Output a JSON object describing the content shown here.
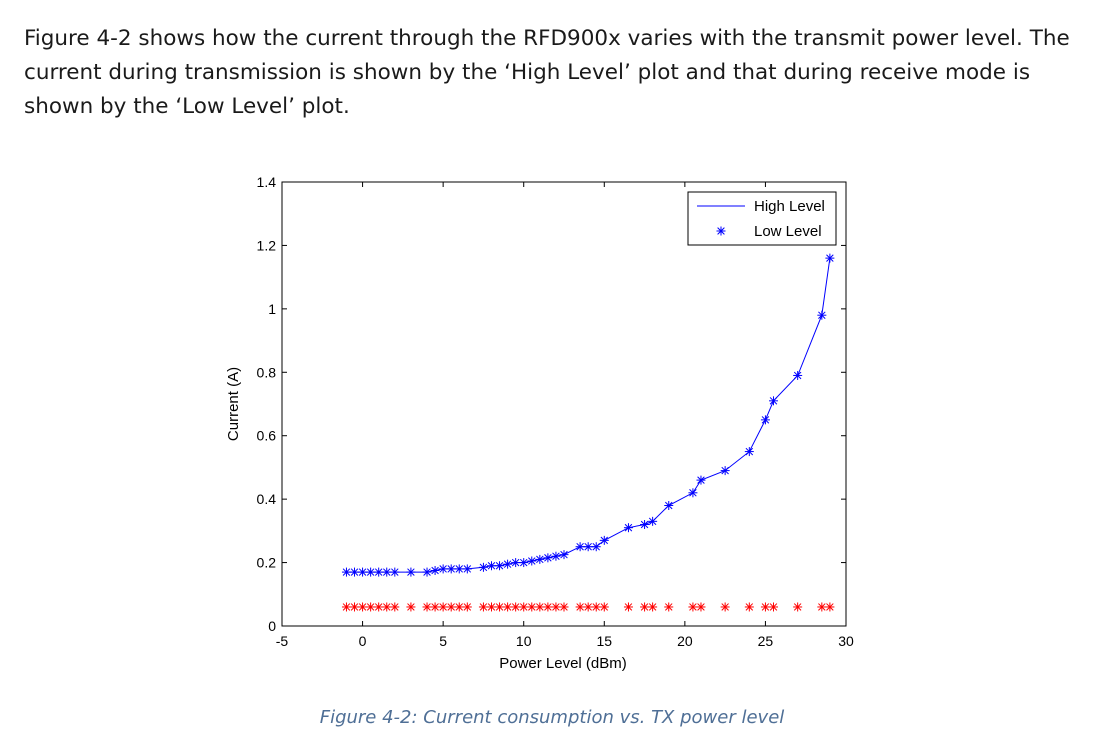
{
  "paragraph": "Figure 4-2 shows how the current through the RFD900x varies with the transmit power level. The current during transmission is shown by the ‘High Level’ plot and that during receive mode is shown by the ‘Low Level’ plot.",
  "caption": "Figure 4-2: Current consumption vs. TX power level",
  "colors": {
    "high": "#0000ff",
    "low": "#ff0000",
    "caption": "#4f6f96"
  },
  "chart_data": {
    "type": "line",
    "title": "",
    "xlabel": "Power Level (dBm)",
    "ylabel": "Current (A)",
    "xlim": [
      -5,
      30
    ],
    "ylim": [
      0,
      1.4
    ],
    "xticks": [
      "-5",
      "0",
      "5",
      "10",
      "15",
      "20",
      "25",
      "30"
    ],
    "yticks": [
      "0",
      "0.2",
      "0.4",
      "0.6",
      "0.8",
      "1",
      "1.2",
      "1.4"
    ],
    "legend_position": "top-right",
    "legend": [
      "High Level",
      "Low Level"
    ],
    "series": [
      {
        "name": "High Level",
        "x": [
          -1,
          -0.5,
          0,
          0.5,
          1,
          1.5,
          2,
          3,
          4,
          4.5,
          5,
          5.5,
          6,
          6.5,
          7.5,
          8,
          8.5,
          9,
          9.5,
          10,
          10.5,
          11,
          11.5,
          12,
          12.5,
          13.5,
          14,
          14.5,
          15,
          16.5,
          17.5,
          18,
          19,
          20.5,
          21,
          22.5,
          24,
          25,
          25.5,
          27,
          28.5,
          29
        ],
        "y": [
          0.17,
          0.17,
          0.17,
          0.17,
          0.17,
          0.17,
          0.17,
          0.17,
          0.17,
          0.175,
          0.18,
          0.18,
          0.18,
          0.18,
          0.185,
          0.19,
          0.19,
          0.195,
          0.2,
          0.2,
          0.205,
          0.21,
          0.215,
          0.22,
          0.225,
          0.25,
          0.25,
          0.25,
          0.27,
          0.31,
          0.32,
          0.33,
          0.38,
          0.42,
          0.46,
          0.49,
          0.55,
          0.65,
          0.71,
          0.79,
          0.98,
          1.16
        ]
      },
      {
        "name": "Low Level",
        "x": [
          -1,
          -0.5,
          0,
          0.5,
          1,
          1.5,
          2,
          3,
          4,
          4.5,
          5,
          5.5,
          6,
          6.5,
          7.5,
          8,
          8.5,
          9,
          9.5,
          10,
          10.5,
          11,
          11.5,
          12,
          12.5,
          13.5,
          14,
          14.5,
          15,
          16.5,
          17.5,
          18,
          19,
          20.5,
          21,
          22.5,
          24,
          25,
          25.5,
          27,
          28.5,
          29
        ],
        "y": [
          0.06,
          0.06,
          0.06,
          0.06,
          0.06,
          0.06,
          0.06,
          0.06,
          0.06,
          0.06,
          0.06,
          0.06,
          0.06,
          0.06,
          0.06,
          0.06,
          0.06,
          0.06,
          0.06,
          0.06,
          0.06,
          0.06,
          0.06,
          0.06,
          0.06,
          0.06,
          0.06,
          0.06,
          0.06,
          0.06,
          0.06,
          0.06,
          0.06,
          0.06,
          0.06,
          0.06,
          0.06,
          0.06,
          0.06,
          0.06,
          0.06,
          0.06
        ]
      }
    ]
  }
}
